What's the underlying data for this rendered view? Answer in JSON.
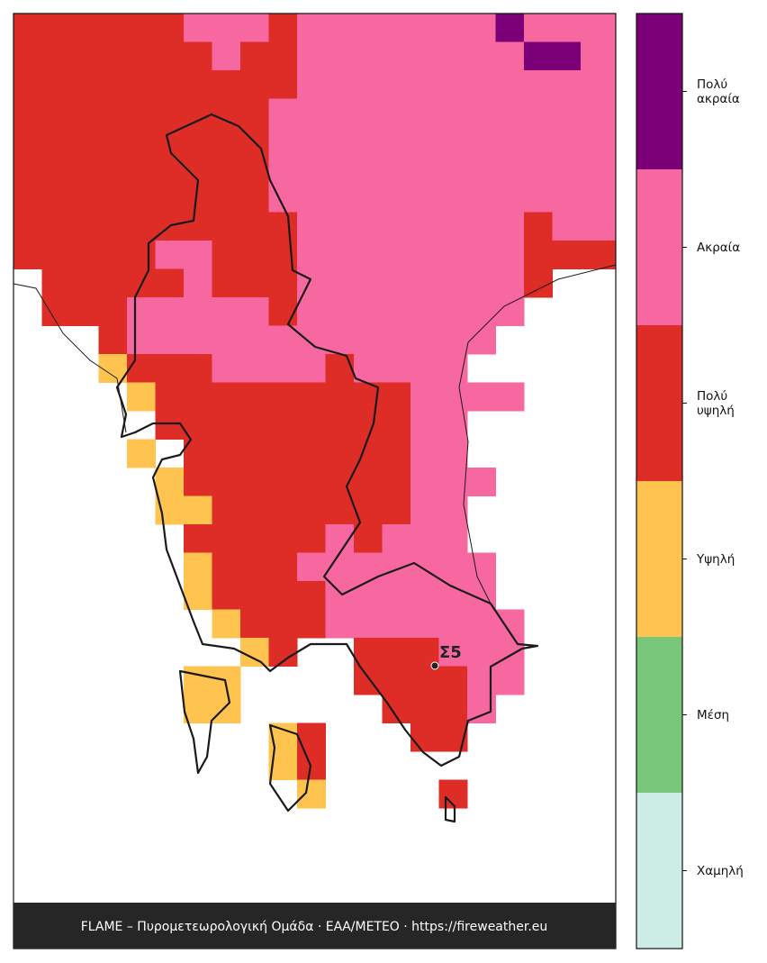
{
  "map": {
    "legend": [
      {
        "label": "Χαμηλή",
        "color": "#ccece6"
      },
      {
        "label": "Μέση",
        "color": "#78c679"
      },
      {
        "label": "Υψηλή",
        "color": "#fec44f"
      },
      {
        "label": "Πολύ υψηλή",
        "color": "#de2d26"
      },
      {
        "label": "Ακραία",
        "color": "#f768a1"
      },
      {
        "label": "Πολύ ακραία",
        "color": "#7b0078"
      }
    ],
    "grid": [
      "444444555455555556555",
      "444444454455555555665",
      "444444444455555555555",
      "444444444555555555555",
      "444444444555555555555",
      "444444444555555555555",
      "444444444555555555555",
      "444444444455555555455",
      "444445544455555555444",
      "044444544455555555400",
      "044455555455555555000",
      "000455555555555550000",
      "000344455554555500000",
      "000034444444445555000",
      "000004444444445500000",
      "000030444444445500000",
      "000003444444445550000",
      "000003344444445500000",
      "000000444445455500000",
      "000000344455555550000",
      "000000344445555550000",
      "000000034445555555000",
      "000000003400444555000",
      "000000330000444455000",
      "000000330000044450000",
      "000000000340004400000",
      "000000000340000000000",
      "000000000030000400000"
    ],
    "station": "Σ5",
    "footer": "FLAME – Πυρομετεωρολογική Ομάδα · ΕΑΑ/METEO · https://fireweather.eu"
  }
}
